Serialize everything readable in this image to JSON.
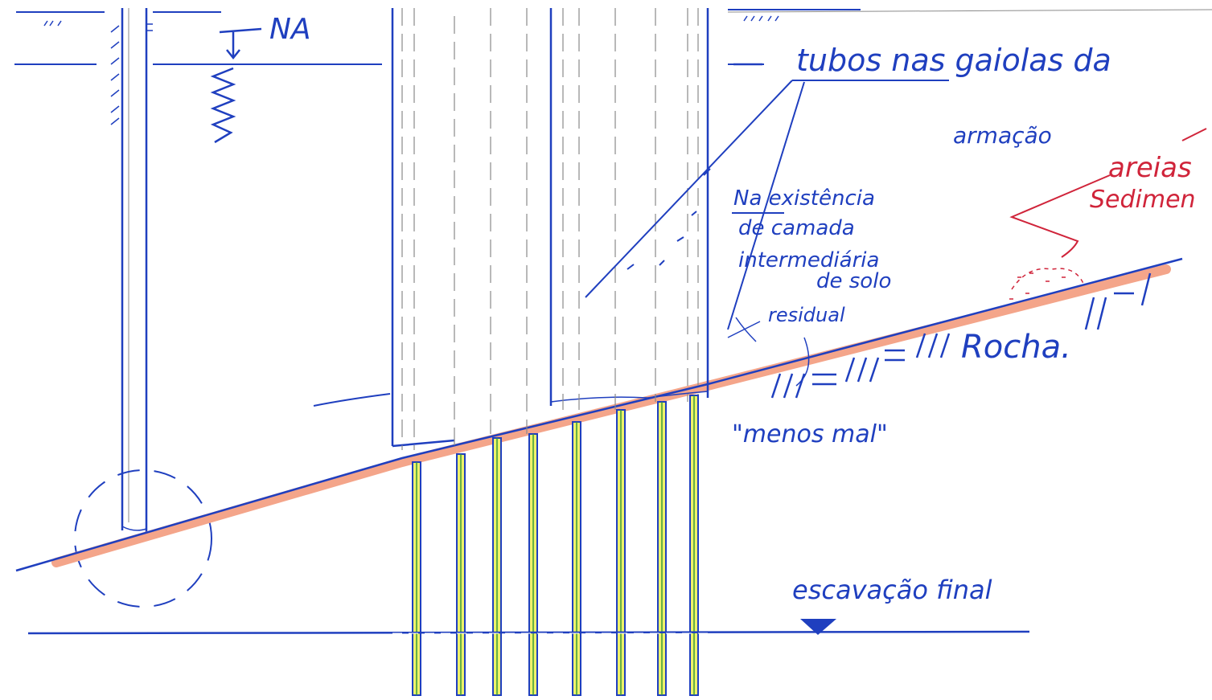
{
  "labels": {
    "water_level": "NA",
    "tubes_line1": "tubos nas gaiolas da",
    "tubes_line2": "armação",
    "sands_line1": "areias",
    "sands_line2": "Sedimen",
    "note_line1": "Na existência",
    "note_line2": "de camada",
    "note_line3": "intermediária",
    "note_line4": "de solo",
    "note_line5": "residual",
    "rock": "Rocha.",
    "less_bad": "\"menos mal\"",
    "final_excavation": "escavação final"
  },
  "colors": {
    "ink_blue": "#1f3fbf",
    "ink_red": "#d0243a",
    "rock_highlight": "#f4a58a",
    "tube_highlight": "#eef26a",
    "tube_inner": "#3a9a3a",
    "pencil_grey": "#8a8a8a"
  }
}
